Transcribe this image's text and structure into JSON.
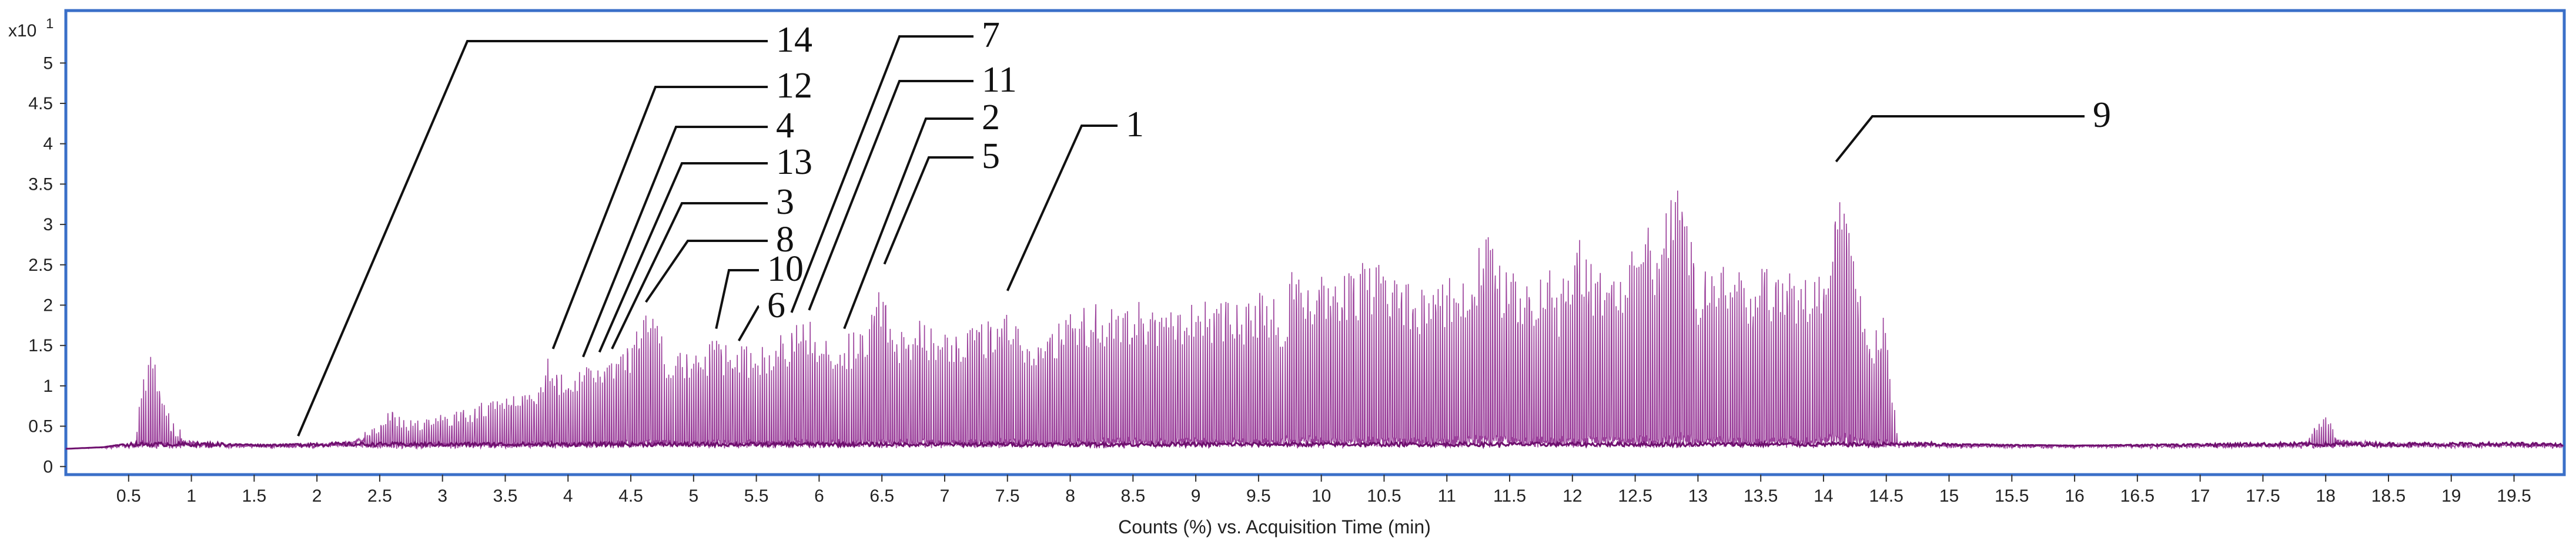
{
  "chart_data": {
    "type": "line",
    "title": "",
    "xlabel": "Counts (%) vs. Acquisition Time (min)",
    "ylabel": "",
    "y_multiplier_label": "x10",
    "y_multiplier_exponent": "1",
    "xlim": [
      0,
      19.9
    ],
    "ylim": [
      -0.1,
      5.65
    ],
    "x_ticks": [
      "0.5",
      "1",
      "1.5",
      "2",
      "2.5",
      "3",
      "3.5",
      "4",
      "4.5",
      "5",
      "5.5",
      "6",
      "6.5",
      "7",
      "7.5",
      "8",
      "8.5",
      "9",
      "9.5",
      "10",
      "10.5",
      "11",
      "11.5",
      "12",
      "12.5",
      "13",
      "13.5",
      "14",
      "14.5",
      "15",
      "15.5",
      "16",
      "16.5",
      "17",
      "17.5",
      "18",
      "18.5",
      "19",
      "19.5"
    ],
    "y_ticks": [
      "0",
      "0.5",
      "1",
      "1.5",
      "2",
      "2.5",
      "3",
      "3.5",
      "4",
      "4.5",
      "5"
    ],
    "grid": false,
    "frame_color": "#3a6fc8",
    "series_color": "#8a1f8a",
    "series": [
      {
        "name": "",
        "envelope": [
          [
            0.0,
            0.22
          ],
          [
            0.3,
            0.24
          ],
          [
            0.55,
            0.3
          ],
          [
            0.62,
            1.2
          ],
          [
            0.66,
            1.4
          ],
          [
            0.72,
            1.3
          ],
          [
            0.78,
            0.85
          ],
          [
            0.85,
            0.55
          ],
          [
            0.95,
            0.4
          ],
          [
            1.1,
            0.32
          ],
          [
            1.3,
            0.28
          ],
          [
            1.6,
            0.27
          ],
          [
            1.85,
            0.28
          ],
          [
            2.1,
            0.3
          ],
          [
            2.3,
            0.38
          ],
          [
            2.5,
            0.55
          ],
          [
            2.6,
            0.75
          ],
          [
            2.7,
            0.6
          ],
          [
            2.9,
            0.6
          ],
          [
            3.0,
            0.68
          ],
          [
            3.2,
            0.72
          ],
          [
            3.4,
            0.88
          ],
          [
            3.6,
            0.95
          ],
          [
            3.8,
            1.1
          ],
          [
            3.85,
            1.4
          ],
          [
            3.9,
            1.15
          ],
          [
            4.0,
            1.2
          ],
          [
            4.2,
            1.32
          ],
          [
            4.3,
            1.38
          ],
          [
            4.4,
            1.4
          ],
          [
            4.5,
            1.5
          ],
          [
            4.6,
            2.0
          ],
          [
            4.7,
            1.8
          ],
          [
            4.8,
            1.4
          ],
          [
            4.9,
            1.45
          ],
          [
            5.0,
            1.5
          ],
          [
            5.1,
            1.55
          ],
          [
            5.2,
            1.65
          ],
          [
            5.3,
            1.45
          ],
          [
            5.4,
            1.5
          ],
          [
            5.5,
            1.55
          ],
          [
            5.6,
            1.6
          ],
          [
            5.7,
            1.65
          ],
          [
            5.8,
            1.8
          ],
          [
            5.9,
            1.85
          ],
          [
            6.0,
            1.7
          ],
          [
            6.1,
            1.62
          ],
          [
            6.2,
            1.65
          ],
          [
            6.3,
            1.7
          ],
          [
            6.4,
            1.8
          ],
          [
            6.5,
            2.4
          ],
          [
            6.6,
            1.75
          ],
          [
            6.7,
            1.75
          ],
          [
            6.8,
            1.85
          ],
          [
            6.9,
            1.78
          ],
          [
            7.0,
            1.75
          ],
          [
            7.2,
            1.78
          ],
          [
            7.4,
            1.85
          ],
          [
            7.5,
            2.1
          ],
          [
            7.6,
            1.68
          ],
          [
            7.8,
            1.72
          ],
          [
            8.0,
            1.95
          ],
          [
            8.2,
            2.05
          ],
          [
            8.5,
            2.1
          ],
          [
            8.7,
            1.95
          ],
          [
            8.9,
            2.0
          ],
          [
            9.0,
            2.15
          ],
          [
            9.2,
            2.1
          ],
          [
            9.4,
            2.05
          ],
          [
            9.5,
            2.2
          ],
          [
            9.7,
            2.0
          ],
          [
            9.8,
            2.7
          ],
          [
            9.9,
            2.4
          ],
          [
            10.0,
            2.55
          ],
          [
            10.2,
            2.4
          ],
          [
            10.4,
            2.6
          ],
          [
            10.6,
            2.4
          ],
          [
            10.8,
            2.2
          ],
          [
            11.0,
            2.4
          ],
          [
            11.2,
            2.5
          ],
          [
            11.3,
            2.95
          ],
          [
            11.4,
            2.6
          ],
          [
            11.6,
            2.3
          ],
          [
            11.8,
            2.5
          ],
          [
            11.9,
            2.2
          ],
          [
            12.0,
            2.7
          ],
          [
            12.1,
            2.9
          ],
          [
            12.2,
            2.4
          ],
          [
            12.3,
            2.8
          ],
          [
            12.4,
            2.5
          ],
          [
            12.5,
            2.9
          ],
          [
            12.6,
            3.0
          ],
          [
            12.7,
            2.8
          ],
          [
            12.8,
            3.65
          ],
          [
            12.9,
            3.3
          ],
          [
            13.0,
            2.4
          ],
          [
            13.1,
            2.5
          ],
          [
            13.2,
            2.75
          ],
          [
            13.3,
            2.5
          ],
          [
            13.4,
            2.2
          ],
          [
            13.5,
            2.5
          ],
          [
            13.6,
            2.4
          ],
          [
            13.7,
            2.6
          ],
          [
            13.8,
            2.3
          ],
          [
            13.9,
            2.4
          ],
          [
            14.0,
            2.35
          ],
          [
            14.1,
            3.7
          ],
          [
            14.2,
            3.2
          ],
          [
            14.3,
            2.1
          ],
          [
            14.4,
            1.7
          ],
          [
            14.5,
            1.9
          ],
          [
            14.55,
            1.0
          ],
          [
            14.6,
            0.35
          ],
          [
            15.0,
            0.28
          ],
          [
            16.0,
            0.26
          ],
          [
            17.0,
            0.28
          ],
          [
            17.8,
            0.3
          ],
          [
            18.0,
            0.65
          ],
          [
            18.1,
            0.4
          ],
          [
            18.5,
            0.3
          ],
          [
            19.0,
            0.3
          ],
          [
            19.5,
            0.3
          ],
          [
            19.9,
            0.28
          ]
        ]
      }
    ],
    "annotations": [
      {
        "label": "14",
        "peak_x": 1.85,
        "peak_y": 0.32
      },
      {
        "label": "12",
        "peak_x": 3.88,
        "peak_y": 1.4
      },
      {
        "label": "4",
        "peak_x": 4.12,
        "peak_y": 1.3
      },
      {
        "label": "13",
        "peak_x": 4.25,
        "peak_y": 1.36
      },
      {
        "label": "3",
        "peak_x": 4.35,
        "peak_y": 1.4
      },
      {
        "label": "8",
        "peak_x": 4.62,
        "peak_y": 1.98
      },
      {
        "label": "10",
        "peak_x": 5.18,
        "peak_y": 1.65
      },
      {
        "label": "6",
        "peak_x": 5.36,
        "peak_y": 1.5
      },
      {
        "label": "7",
        "peak_x": 5.78,
        "peak_y": 1.85
      },
      {
        "label": "11",
        "peak_x": 5.92,
        "peak_y": 1.88
      },
      {
        "label": "2",
        "peak_x": 6.2,
        "peak_y": 1.65
      },
      {
        "label": "5",
        "peak_x": 6.52,
        "peak_y": 2.45
      },
      {
        "label": "1",
        "peak_x": 7.5,
        "peak_y": 2.12
      },
      {
        "label": "9",
        "peak_x": 14.1,
        "peak_y": 3.72
      }
    ]
  }
}
